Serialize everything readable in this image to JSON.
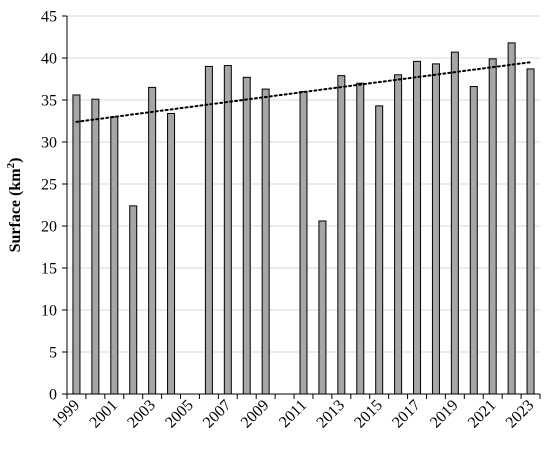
{
  "chart_data": {
    "type": "bar",
    "ylabel": "Surface (km",
    "ylabel_sup": "2",
    "ylabel_close": ")",
    "ylim": [
      0,
      45
    ],
    "yticks": [
      0,
      5,
      10,
      15,
      20,
      25,
      30,
      35,
      40,
      45
    ],
    "grid": true,
    "categories": [
      "1999",
      "2000",
      "2001",
      "2002",
      "2003",
      "2004",
      "2005",
      "2006",
      "2007",
      "2008",
      "2009",
      "2010",
      "2011",
      "2012",
      "2013",
      "2014",
      "2015",
      "2016",
      "2017",
      "2018",
      "2019",
      "2020",
      "2021",
      "2022",
      "2023"
    ],
    "xtick_labels": [
      "1999",
      "2001",
      "2003",
      "2005",
      "2007",
      "2009",
      "2011",
      "2013",
      "2015",
      "2017",
      "2019",
      "2021",
      "2023"
    ],
    "values": [
      35.6,
      35.1,
      33.0,
      22.4,
      36.5,
      33.4,
      null,
      39.0,
      39.1,
      37.7,
      36.3,
      null,
      36.0,
      20.6,
      37.9,
      37.0,
      34.3,
      38.0,
      39.6,
      39.3,
      40.7,
      36.6,
      39.9,
      41.8,
      38.7
    ],
    "trendline": {
      "type": "linear",
      "start": 32.4,
      "end": 39.5
    },
    "colors": {
      "bar_fill": "#a6a6a6",
      "bar_stroke": "#000000",
      "grid": "#d9d9d9",
      "trend": "#000000"
    }
  }
}
